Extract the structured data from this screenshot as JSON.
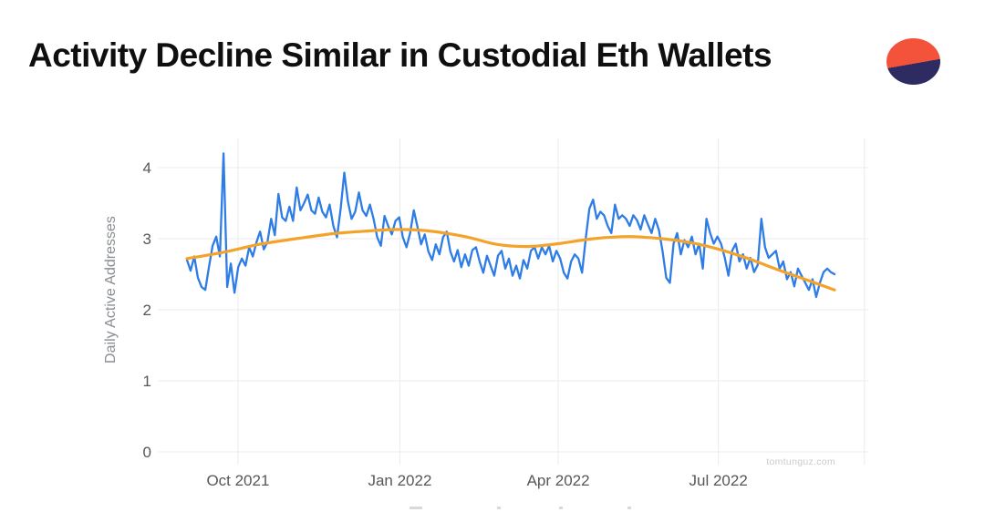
{
  "header": {
    "title": "Activity Decline Similar in Custodial Eth Wallets"
  },
  "watermark": "tomtunguz.com",
  "colors": {
    "title": "#0f0f10",
    "daily_line": "#2E7CE5",
    "trend_line": "#F3A32A",
    "grid": "#ebebeb",
    "tick_label": "#54575c",
    "axis_title": "#8a8d91",
    "watermark": "#c9cbce",
    "logo_orange": "#F4533B",
    "logo_navy": "#2E2A62"
  },
  "chart_data": {
    "type": "line",
    "title": "Activity Decline Similar in Custodial Eth Wallets",
    "xlabel": "",
    "ylabel": "Daily Active Addresses",
    "ylim": [
      0,
      4.5
    ],
    "y_ticks": [
      0,
      1,
      2,
      3,
      4
    ],
    "x_ticks": [
      {
        "day": 29,
        "label": "Oct 2021"
      },
      {
        "day": 121,
        "label": "Jan 2022"
      },
      {
        "day": 211,
        "label": "Apr 2022"
      },
      {
        "day": 302,
        "label": "Jul 2022"
      },
      {
        "day": 385,
        "label": ""
      }
    ],
    "x_domain_days": [
      -17,
      387
    ],
    "grid": true,
    "legend": "none",
    "series": [
      {
        "name": "daily-active-addresses",
        "style": "jagged",
        "day_start": 0,
        "day_end": 368,
        "values": [
          2.7,
          2.55,
          2.75,
          2.45,
          2.32,
          2.28,
          2.6,
          2.9,
          3.03,
          2.75,
          4.2,
          2.32,
          2.65,
          2.24,
          2.6,
          2.72,
          2.62,
          2.88,
          2.75,
          2.95,
          3.1,
          2.85,
          2.95,
          3.28,
          3.05,
          3.63,
          3.3,
          3.25,
          3.45,
          3.25,
          3.72,
          3.4,
          3.5,
          3.62,
          3.4,
          3.35,
          3.58,
          3.38,
          3.3,
          3.48,
          3.18,
          3.02,
          3.42,
          3.93,
          3.52,
          3.28,
          3.38,
          3.65,
          3.4,
          3.32,
          3.48,
          3.28,
          3.02,
          2.9,
          3.32,
          3.18,
          3.06,
          3.25,
          3.3,
          3.02,
          2.88,
          3.08,
          3.4,
          3.17,
          2.92,
          3.06,
          2.82,
          2.7,
          2.92,
          2.78,
          3.02,
          3.1,
          2.82,
          2.68,
          2.84,
          2.6,
          2.78,
          2.62,
          2.84,
          2.88,
          2.68,
          2.52,
          2.76,
          2.62,
          2.48,
          2.76,
          2.83,
          2.58,
          2.72,
          2.48,
          2.62,
          2.44,
          2.7,
          2.58,
          2.83,
          2.88,
          2.72,
          2.88,
          2.78,
          2.9,
          2.68,
          2.83,
          2.72,
          2.52,
          2.44,
          2.68,
          2.78,
          2.72,
          2.52,
          3.0,
          3.42,
          3.55,
          3.28,
          3.38,
          3.33,
          3.18,
          3.08,
          3.48,
          3.28,
          3.33,
          3.28,
          3.18,
          3.33,
          3.26,
          3.13,
          3.33,
          3.2,
          3.08,
          3.28,
          3.12,
          2.82,
          2.45,
          2.38,
          2.93,
          3.08,
          2.78,
          2.98,
          2.88,
          3.03,
          2.78,
          2.93,
          2.58,
          3.28,
          3.08,
          2.93,
          3.03,
          2.93,
          2.73,
          2.48,
          2.83,
          2.93,
          2.68,
          2.78,
          2.58,
          2.73,
          2.53,
          2.63,
          3.28,
          2.88,
          2.73,
          2.78,
          2.83,
          2.58,
          2.68,
          2.43,
          2.53,
          2.33,
          2.58,
          2.48,
          2.38,
          2.28,
          2.43,
          2.18,
          2.38,
          2.53,
          2.58,
          2.53,
          2.5
        ]
      },
      {
        "name": "smoothed-trend",
        "style": "smooth",
        "points": [
          [
            0,
            2.72
          ],
          [
            21,
            2.81
          ],
          [
            41,
            2.92
          ],
          [
            62,
            3.0
          ],
          [
            83,
            3.07
          ],
          [
            104,
            3.11
          ],
          [
            120,
            3.13
          ],
          [
            137,
            3.11
          ],
          [
            158,
            3.03
          ],
          [
            176,
            2.92
          ],
          [
            194,
            2.89
          ],
          [
            211,
            2.93
          ],
          [
            231,
            3.0
          ],
          [
            251,
            3.03
          ],
          [
            270,
            3.0
          ],
          [
            285,
            2.95
          ],
          [
            301,
            2.86
          ],
          [
            319,
            2.72
          ],
          [
            334,
            2.58
          ],
          [
            350,
            2.44
          ],
          [
            368,
            2.28
          ]
        ]
      }
    ]
  }
}
